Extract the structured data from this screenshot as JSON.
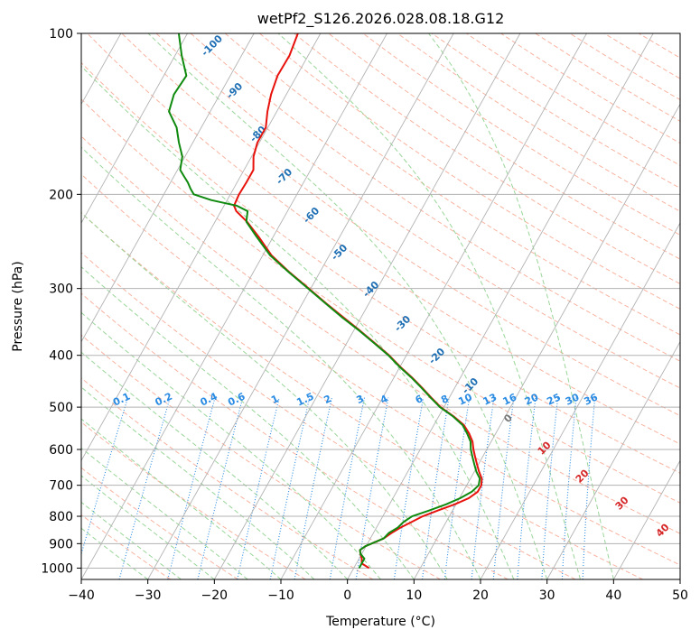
{
  "chart_data": {
    "type": "line",
    "subtype": "skew-t log-p",
    "title": "wetPf2_S126.2026.028.08.18.G12",
    "xlabel": "Temperature (°C)",
    "ylabel": "Pressure (hPa)",
    "xlim": [
      -40,
      50
    ],
    "ylim": [
      1050,
      100
    ],
    "y_scale": "log",
    "skew_degrees_per_decade": 45,
    "x_ticks": [
      "−40",
      "−30",
      "−20",
      "−10",
      "0",
      "10",
      "20",
      "30",
      "40",
      "50"
    ],
    "y_ticks": [
      "100",
      "200",
      "300",
      "400",
      "500",
      "600",
      "700",
      "800",
      "900",
      "1000"
    ],
    "grid": true,
    "colors": {
      "temperature": "#e8120c",
      "dewpoint": "#0f8a0f",
      "isotherm_label": "#1f6fb4",
      "mixing_ratio": "#2a8be3",
      "theta_e_label": "#d62728",
      "dry_adiabat": "#f6a08a",
      "moist_adiabat": "#8fd08f",
      "isotherm": "#b3b3b3",
      "hpa_grid": "#b3b3b3"
    },
    "isotherm_labels": [
      "-100",
      "-90",
      "-80",
      "-70",
      "-60",
      "-50",
      "-40",
      "-30",
      "-20",
      "-10"
    ],
    "mixing_ratio_labels": [
      "0.1",
      "0.2",
      "0.4",
      "0.6",
      "1",
      "1.5",
      "2",
      "3",
      "4",
      "6",
      "8",
      "10",
      "13",
      "16",
      "20",
      "25",
      "30",
      "36"
    ],
    "theta_e_labels": [
      "0",
      "10",
      "20",
      "30",
      "40"
    ],
    "series": [
      {
        "name": "Temperature",
        "color": "#e8120c",
        "pressure": [
          1000,
          980,
          960,
          940,
          925,
          910,
          900,
          880,
          860,
          840,
          820,
          800,
          780,
          760,
          740,
          720,
          700,
          680,
          660,
          640,
          620,
          600,
          580,
          560,
          540,
          520,
          500,
          480,
          460,
          440,
          420,
          400,
          380,
          360,
          340,
          320,
          300,
          280,
          260,
          240,
          225,
          215,
          210,
          205,
          200,
          190,
          180,
          170,
          160,
          150,
          140,
          130,
          120,
          110,
          100
        ],
        "temperature": [
          2.3,
          0.8,
          0.4,
          -0.2,
          -0.6,
          -0.1,
          0.6,
          2.0,
          2.7,
          3.6,
          4.8,
          6.0,
          7.8,
          9.8,
          11.4,
          12.2,
          12.2,
          11.7,
          10.7,
          9.8,
          8.9,
          8.0,
          7.2,
          6.0,
          4.5,
          2.2,
          -0.5,
          -2.7,
          -4.9,
          -7.3,
          -10.0,
          -12.6,
          -15.7,
          -19.0,
          -22.6,
          -26.4,
          -30.3,
          -34.5,
          -38.7,
          -42.2,
          -45.2,
          -47.7,
          -48.5,
          -48.6,
          -48.7,
          -48.6,
          -48.6,
          -49.7,
          -50.3,
          -50.3,
          -51.4,
          -52.3,
          -52.9,
          -52.8,
          -53.4
        ]
      },
      {
        "name": "Dewpoint",
        "color": "#0f8a0f",
        "pressure": [
          1000,
          980,
          960,
          940,
          925,
          910,
          900,
          880,
          860,
          840,
          820,
          800,
          780,
          760,
          740,
          720,
          700,
          680,
          660,
          640,
          620,
          600,
          580,
          560,
          540,
          520,
          500,
          480,
          460,
          440,
          420,
          400,
          380,
          360,
          340,
          320,
          300,
          280,
          260,
          240,
          225,
          215,
          210,
          205,
          200,
          195,
          190,
          185,
          180,
          170,
          160,
          150,
          140,
          130,
          120,
          110,
          100
        ],
        "temperature": [
          0.8,
          0.8,
          0.8,
          -0.2,
          -0.6,
          -0.1,
          0.6,
          2.0,
          2.3,
          3.2,
          3.6,
          4.4,
          6.5,
          8.5,
          10.1,
          11.3,
          11.8,
          11.4,
          10.3,
          9.4,
          8.5,
          7.6,
          6.9,
          5.7,
          4.3,
          2.1,
          -0.6,
          -2.8,
          -5.0,
          -7.4,
          -10.1,
          -12.7,
          -15.8,
          -19.1,
          -22.8,
          -26.5,
          -30.4,
          -34.6,
          -38.9,
          -42.5,
          -45.3,
          -46.0,
          -48.1,
          -52.4,
          -55.5,
          -56.5,
          -57.4,
          -58.5,
          -59.6,
          -60.4,
          -62.1,
          -63.7,
          -66.2,
          -66.9,
          -66.6,
          -69.0,
          -71.3
        ]
      }
    ]
  }
}
